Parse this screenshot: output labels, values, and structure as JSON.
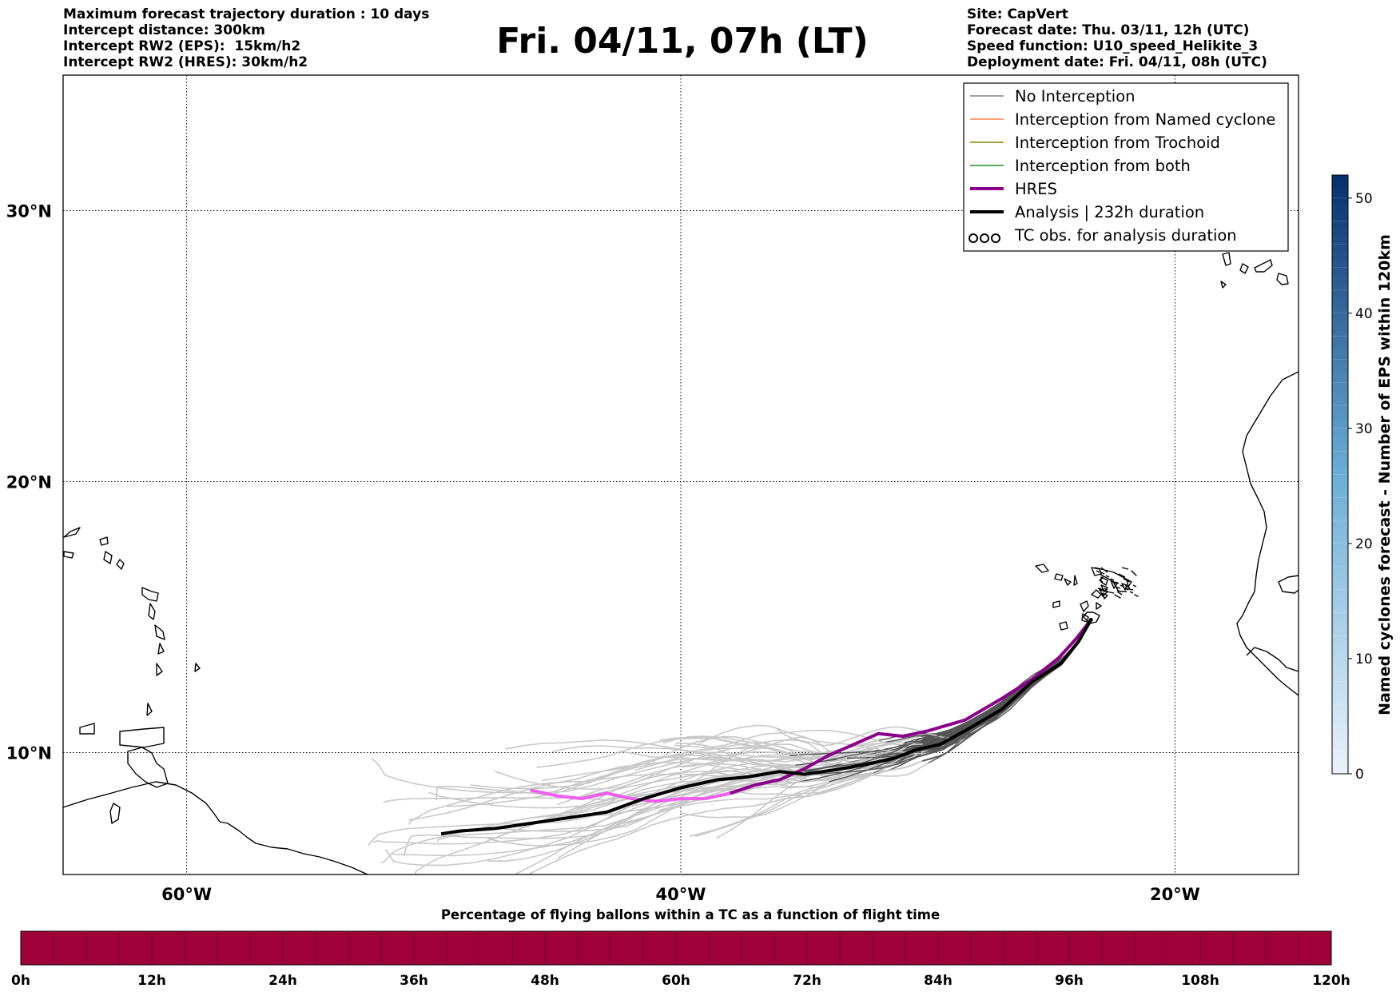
{
  "header": {
    "left_lines": [
      "Maximum forecast trajectory duration : 10 days",
      "Intercept distance: 300km",
      "Intercept RW2 (EPS):  15km/h2",
      "Intercept RW2 (HRES): 30km/h2"
    ],
    "title": "Fri. 04/11, 07h (LT)",
    "right_lines": [
      "Site: CapVert",
      "Forecast date: Thu. 03/11, 12h (UTC)",
      "Speed function: U10_speed_Helikite_3",
      "Deployment date: Fri. 04/11, 08h (UTC)"
    ]
  },
  "map": {
    "lon_range": [
      -65,
      -15
    ],
    "lat_range": [
      5.5,
      35
    ],
    "lat_ticks": [
      {
        "value": 10,
        "label": "10°N"
      },
      {
        "value": 20,
        "label": "20°N"
      },
      {
        "value": 30,
        "label": "30°N"
      }
    ],
    "lon_ticks": [
      {
        "value": -60,
        "label": "60°W"
      },
      {
        "value": -40,
        "label": "40°W"
      },
      {
        "value": -20,
        "label": "20°W"
      }
    ],
    "grid": true,
    "site": {
      "name": "CapVert",
      "lon": -23.4,
      "lat": 14.9
    }
  },
  "legend": {
    "placement": "top-right",
    "entries": [
      {
        "label": "No Interception",
        "color": "#808080",
        "style": "thin"
      },
      {
        "label": "Interception from Named cyclone",
        "color": "#ff7f50",
        "style": "thin"
      },
      {
        "label": "Interception from Trochoid",
        "color": "#8b8000",
        "style": "thin"
      },
      {
        "label": "Interception from both",
        "color": "#228b22",
        "style": "thin"
      },
      {
        "label": "HRES",
        "color": "#8b008b",
        "style": "thick"
      },
      {
        "label": "Analysis | 232h duration",
        "color": "#000000",
        "style": "thick"
      },
      {
        "label": "TC obs. for analysis duration",
        "color": "#000000",
        "style": "markers"
      }
    ]
  },
  "trajectories": {
    "analysis": {
      "color": "#000000",
      "points": [
        [
          -23.4,
          14.9
        ],
        [
          -23.9,
          14.1
        ],
        [
          -24.6,
          13.3
        ],
        [
          -25.8,
          12.6
        ],
        [
          -27.0,
          11.6
        ],
        [
          -28.5,
          10.8
        ],
        [
          -29.5,
          10.3
        ],
        [
          -30.5,
          10.1
        ],
        [
          -31.3,
          9.8
        ],
        [
          -32.3,
          9.6
        ],
        [
          -33.5,
          9.4
        ],
        [
          -35.0,
          9.2
        ],
        [
          -36.0,
          9.3
        ],
        [
          -37.3,
          9.1
        ],
        [
          -38.5,
          9.0
        ],
        [
          -40.0,
          8.7
        ],
        [
          -41.5,
          8.3
        ],
        [
          -43.0,
          7.8
        ],
        [
          -44.5,
          7.6
        ],
        [
          -46.0,
          7.4
        ],
        [
          -47.5,
          7.2
        ],
        [
          -49.0,
          7.1
        ],
        [
          -49.7,
          7.0
        ]
      ]
    },
    "hres_colors": {
      "late": "#8b008b",
      "early": "#ee5fee"
    },
    "hres": [
      [
        -23.4,
        14.9
      ],
      [
        -24.0,
        14.2
      ],
      [
        -24.7,
        13.5
      ],
      [
        -25.8,
        12.7
      ],
      [
        -27.0,
        12.0
      ],
      [
        -28.5,
        11.2
      ],
      [
        -30.0,
        10.8
      ],
      [
        -31.0,
        10.6
      ],
      [
        -32.0,
        10.7
      ],
      [
        -33.0,
        10.3
      ],
      [
        -34.0,
        9.9
      ],
      [
        -35.0,
        9.4
      ],
      [
        -36.0,
        9.0
      ],
      [
        -37.0,
        8.8
      ],
      [
        -38.0,
        8.5
      ],
      [
        -39.0,
        8.3
      ],
      [
        -40.0,
        8.3
      ],
      [
        -41.0,
        8.2
      ],
      [
        -42.0,
        8.3
      ],
      [
        -43.0,
        8.5
      ],
      [
        -44.0,
        8.3
      ],
      [
        -45.0,
        8.4
      ],
      [
        -46.0,
        8.6
      ],
      [
        -46.1,
        8.6
      ]
    ],
    "eps_colors": {
      "near": "#555555",
      "far": "#c8c8c8"
    },
    "eps_count": 52
  },
  "colorbar": {
    "label": "Named cyclones forecast - Number of EPS within 120km",
    "range": [
      0,
      52
    ],
    "ticks": [
      0,
      10,
      20,
      30,
      40,
      50
    ],
    "colors": [
      "#eaf2fb",
      "#08306b"
    ]
  },
  "bottom_bar": {
    "title": "Percentage of flying ballons within a TC as a function of flight time",
    "color": "#a0003a",
    "tick_labels": [
      "0h",
      "12h",
      "24h",
      "36h",
      "48h",
      "60h",
      "72h",
      "84h",
      "96h",
      "108h",
      "120h"
    ]
  }
}
